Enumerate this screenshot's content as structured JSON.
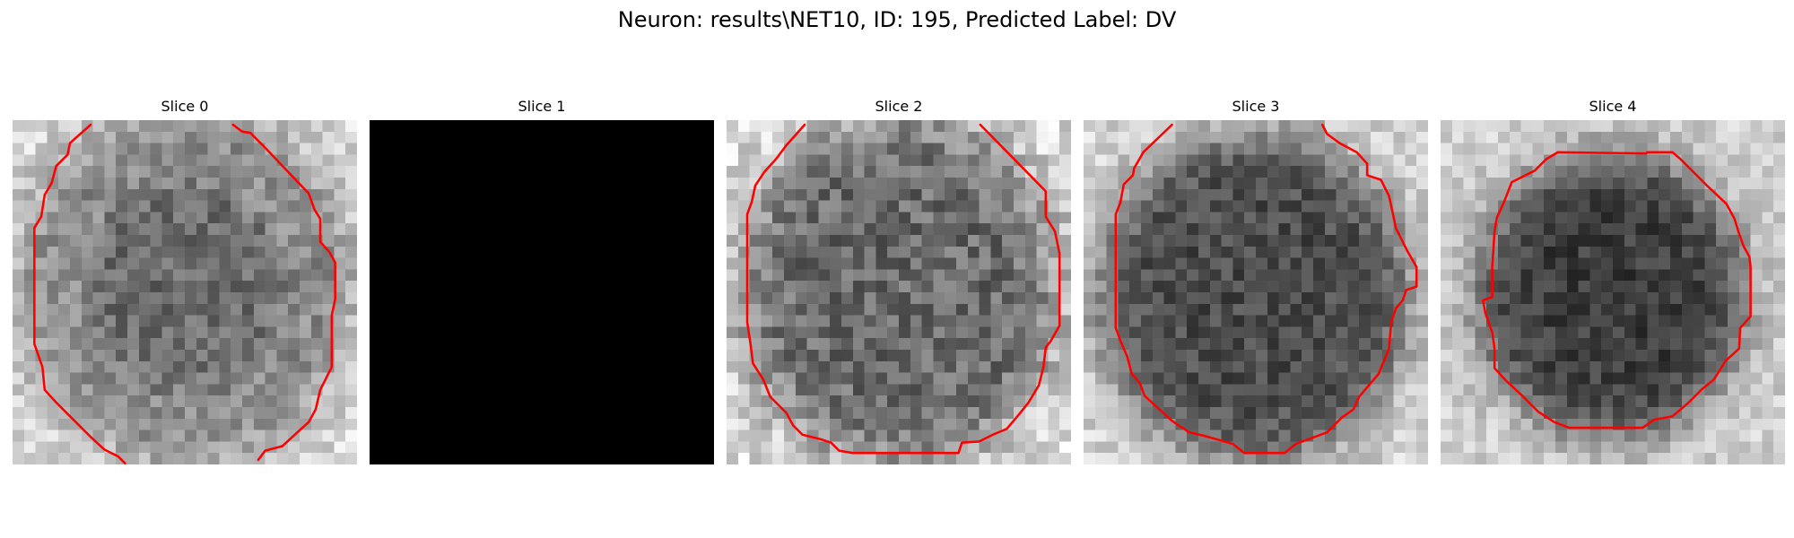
{
  "figure": {
    "suptitle": "Neuron: results\\NET10, ID: 195, Predicted Label: DV"
  },
  "panels": [
    {
      "title": "Slice 0",
      "has_image": true,
      "contour_color": "#ff0000"
    },
    {
      "title": "Slice 1",
      "has_image": false,
      "contour_color": "#ff0000"
    },
    {
      "title": "Slice 2",
      "has_image": true,
      "contour_color": "#ff0000"
    },
    {
      "title": "Slice 3",
      "has_image": true,
      "contour_color": "#ff0000"
    },
    {
      "title": "Slice 4",
      "has_image": true,
      "contour_color": "#ff0000"
    }
  ],
  "colors": {
    "background": "#ffffff",
    "contour": "#ff0000",
    "empty_slice": "#000000"
  }
}
